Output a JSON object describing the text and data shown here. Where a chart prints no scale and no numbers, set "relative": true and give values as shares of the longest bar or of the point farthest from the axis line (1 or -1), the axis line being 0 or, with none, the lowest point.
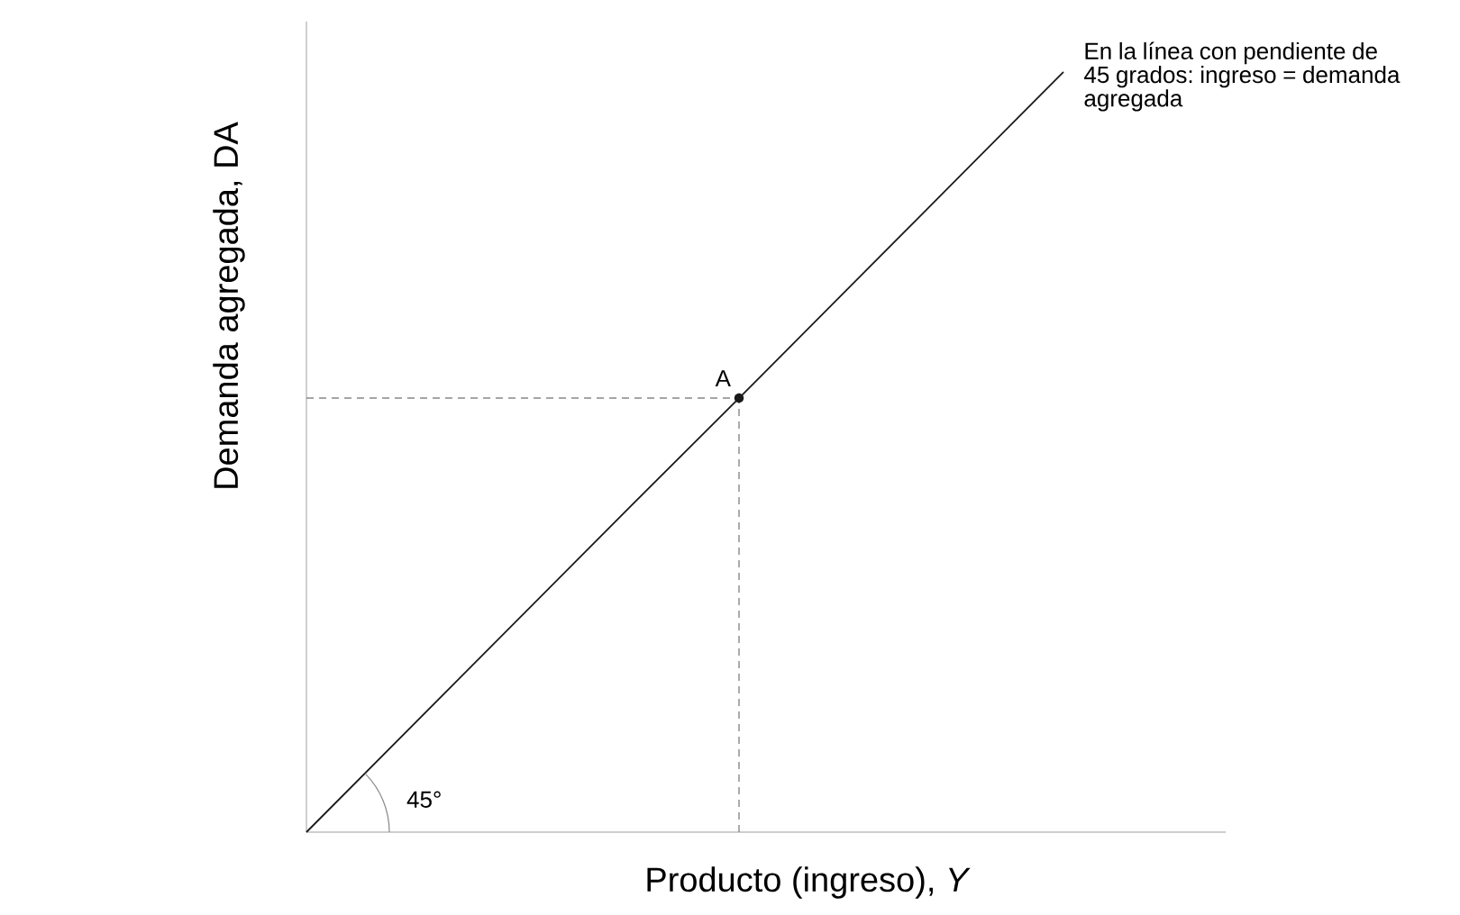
{
  "chart_data": {
    "type": "line",
    "relative": true,
    "xlabel": "Producto (ingreso), *Y*",
    "ylabel": "Demanda agregada, DA",
    "categories": [
      null,
      null,
      null,
      null,
      null,
      null,
      null,
      null
    ],
    "series": [
      {
        "color": "#1a1a1a",
        "line_style": "solid",
        "values": [
          0,
          0.143,
          0.286,
          0.429,
          0.571,
          0.714,
          0.857,
          1
        ]
      }
    ],
    "ref_lines": [
      {
        "axis": "y",
        "value": 0.571,
        "color": "#888888",
        "line_style": "dashed"
      }
    ],
    "annotations": [
      {
        "text": "A",
        "y": 0.571
      },
      "45°",
      "En la línea con pendiente de 45 grados: ingreso = demanda agregada"
    ]
  }
}
